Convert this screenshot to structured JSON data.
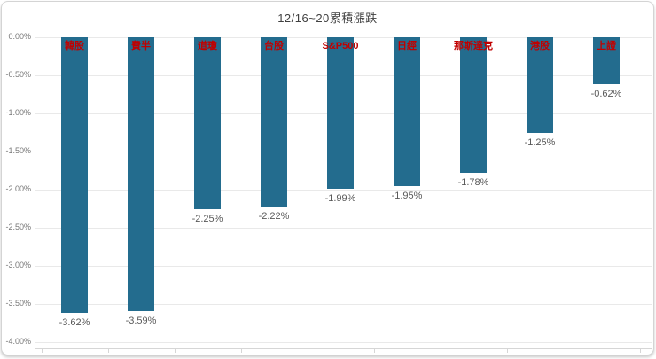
{
  "chart_data": {
    "type": "bar",
    "title": "12/16~20累積漲跌",
    "categories": [
      "韓股",
      "費半",
      "道瓊",
      "台股",
      "S&P500",
      "日經",
      "那斯達克",
      "港股",
      "上證"
    ],
    "values": [
      -3.62,
      -3.59,
      -2.25,
      -2.22,
      -1.99,
      -1.95,
      -1.78,
      -1.25,
      -0.62
    ],
    "value_labels": [
      "-3.62%",
      "-3.59%",
      "-2.25%",
      "-2.22%",
      "-1.99%",
      "-1.95%",
      "-1.78%",
      "-1.25%",
      "-0.62%"
    ],
    "xlabel": "",
    "ylabel": "",
    "ylim": [
      -4,
      0
    ],
    "ytick_step": 0.5,
    "ytick_labels": [
      "0.00%",
      "-0.50%",
      "-1.00%",
      "-1.50%",
      "-2.00%",
      "-2.50%",
      "-3.00%",
      "-3.50%",
      "-4.00%"
    ],
    "grid": true,
    "legend": "none",
    "bar_color": "#236c8e",
    "category_label_color": "#c00000",
    "value_label_color": "#595959",
    "axis_label_color": "#757575",
    "gridline_color": "#e9e9e9",
    "axis_line_color": "#d6d6d6"
  }
}
